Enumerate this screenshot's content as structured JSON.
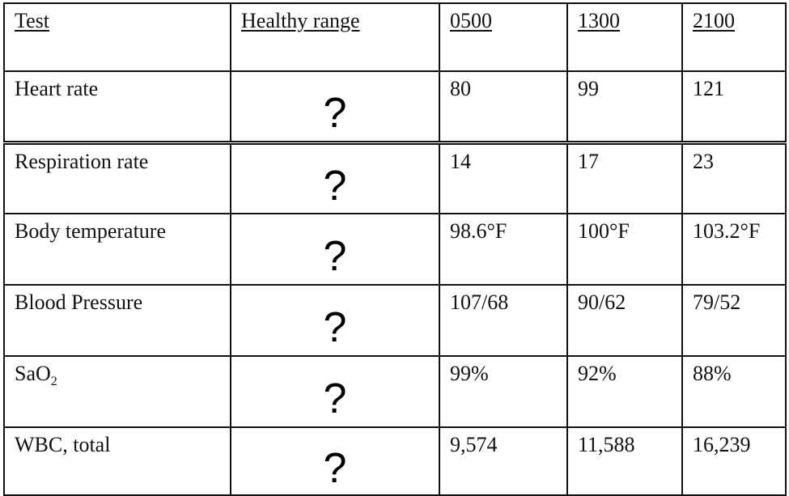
{
  "header": {
    "test": "Test",
    "healthy_range": "Healthy range",
    "times": [
      "0500",
      "1300",
      "2100"
    ]
  },
  "rows": [
    {
      "test": "Heart rate",
      "range": "?",
      "values": [
        "80",
        "99",
        "121"
      ]
    },
    {
      "test": "Respiration rate",
      "range": "?",
      "values": [
        "14",
        "17",
        "23"
      ]
    },
    {
      "test": "Body temperature",
      "range": "?",
      "values": [
        "98.6°F",
        "100°F",
        "103.2°F"
      ]
    },
    {
      "test": "Blood Pressure",
      "range": "?",
      "values": [
        "107/68",
        "90/62",
        "79/52"
      ]
    },
    {
      "test_prefix": "SaO",
      "test_sub": "2",
      "range": "?",
      "values": [
        "99%",
        "92%",
        "88%"
      ]
    },
    {
      "test": "WBC, total",
      "range": "?",
      "values": [
        "9,574",
        "11,588",
        "16,239"
      ]
    }
  ]
}
